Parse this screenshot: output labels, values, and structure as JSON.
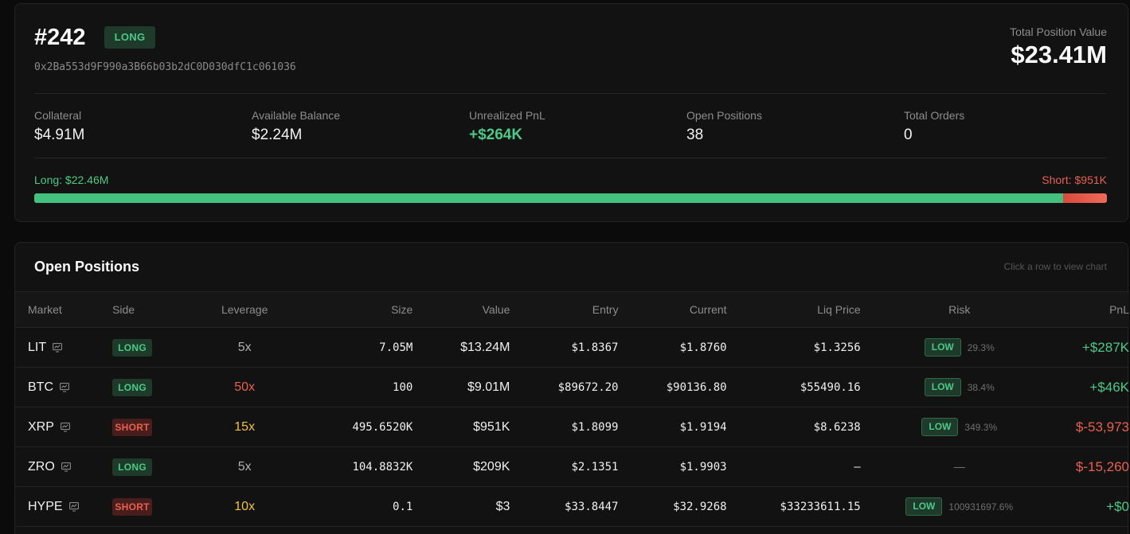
{
  "account": {
    "id": "#242",
    "side": "LONG",
    "address": "0x2Ba553d9F990a3B66b03b2dC0D030dfC1c061036",
    "total_position_value_label": "Total Position Value",
    "total_position_value": "$23.41M"
  },
  "stats": [
    {
      "label": "Collateral",
      "value": "$4.91M",
      "color": "#f2f2f2"
    },
    {
      "label": "Available Balance",
      "value": "$2.24M",
      "color": "#f2f2f2"
    },
    {
      "label": "Unrealized PnL",
      "value": "+$264K",
      "color": "#4cc987"
    },
    {
      "label": "Open Positions",
      "value": "38",
      "color": "#f2f2f2"
    },
    {
      "label": "Total Orders",
      "value": "0",
      "color": "#f2f2f2"
    }
  ],
  "exposure": {
    "long_label": "Long: $22.46M",
    "short_label": "Short: $951K",
    "long_fraction": 0.9594
  },
  "open_positions": {
    "title": "Open Positions",
    "hint": "Click a row to view chart",
    "columns": [
      "Market",
      "Side",
      "Leverage",
      "Size",
      "Value",
      "Entry",
      "Current",
      "Liq Price",
      "Risk",
      "PnL"
    ],
    "rows": [
      {
        "market": "LIT",
        "side": "LONG",
        "leverage": "5x",
        "leverage_color": "gray",
        "size": "7.05M",
        "value": "$13.24M",
        "entry": "$1.8367",
        "current": "$1.8760",
        "liq_price": "$1.3256",
        "risk": "LOW",
        "risk_pct": "29.3%",
        "pnl": "+$287K",
        "pnl_color": "green"
      },
      {
        "market": "BTC",
        "side": "LONG",
        "leverage": "50x",
        "leverage_color": "red",
        "size": "100",
        "value": "$9.01M",
        "entry": "$89672.20",
        "current": "$90136.80",
        "liq_price": "$55490.16",
        "risk": "LOW",
        "risk_pct": "38.4%",
        "pnl": "+$46K",
        "pnl_color": "green"
      },
      {
        "market": "XRP",
        "side": "SHORT",
        "leverage": "15x",
        "leverage_color": "orange",
        "size": "495.6520K",
        "value": "$951K",
        "entry": "$1.8099",
        "current": "$1.9194",
        "liq_price": "$8.6238",
        "risk": "LOW",
        "risk_pct": "349.3%",
        "pnl": "$-53,973",
        "pnl_color": "red"
      },
      {
        "market": "ZRO",
        "side": "LONG",
        "leverage": "5x",
        "leverage_color": "gray",
        "size": "104.8832K",
        "value": "$209K",
        "entry": "$2.1351",
        "current": "$1.9903",
        "liq_price": "–",
        "risk": "",
        "risk_pct": "—",
        "pnl": "$-15,260",
        "pnl_color": "red"
      },
      {
        "market": "HYPE",
        "side": "SHORT",
        "leverage": "10x",
        "leverage_color": "orange",
        "size": "0.1",
        "value": "$3",
        "entry": "$33.8447",
        "current": "$32.9268",
        "liq_price": "$33233611.15",
        "risk": "LOW",
        "risk_pct": "100931697.6%",
        "pnl": "+$0",
        "pnl_color": "green"
      }
    ]
  }
}
